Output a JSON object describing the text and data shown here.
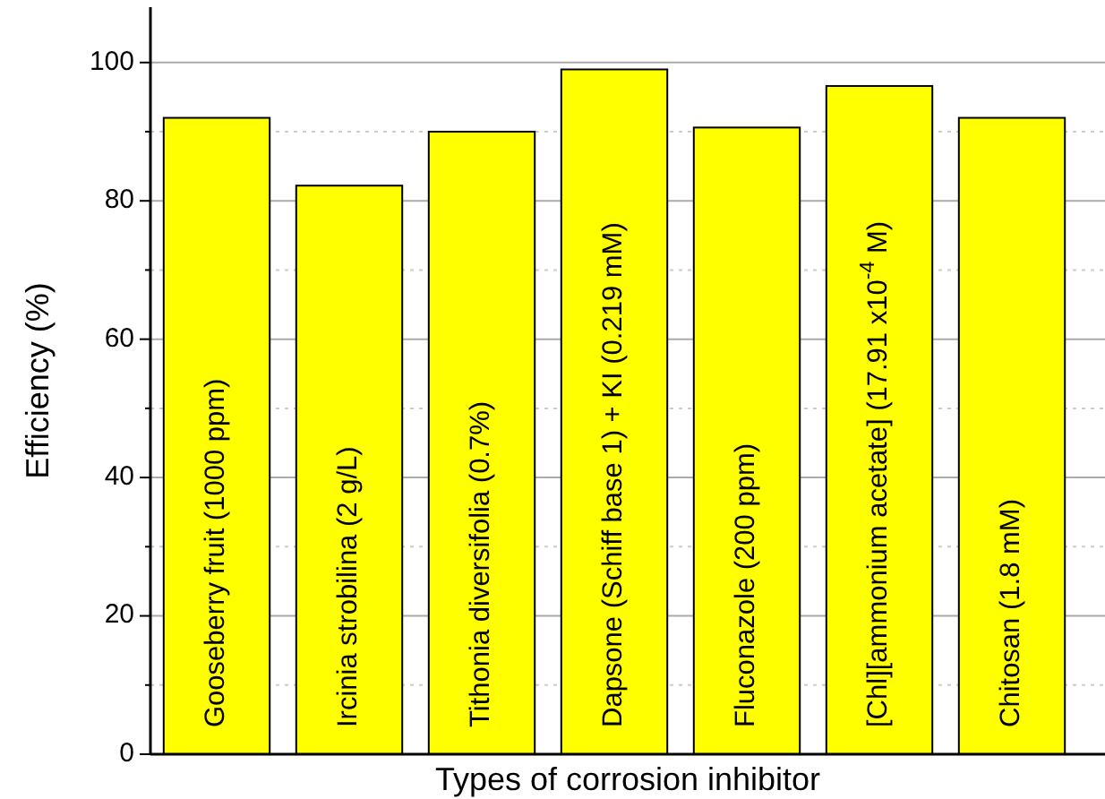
{
  "chart_data": {
    "type": "bar",
    "xlabel": "Types of corrosion inhibitor",
    "ylabel": "Efficiency (%)",
    "categories": [
      "Gooseberry fruit (1000 ppm)",
      "Ircinia strobilina (2 g/L)",
      "Tithonia diversifolia (0.7%)",
      "Dapsone (Schiff base 1) + KI (0.219 mM)",
      "Fluconazole (200 ppm)",
      "[Chl][ammonium acetate] (17.91 x10$^{-4}$ M)",
      "Chitosan (1.8 mM)"
    ],
    "values": [
      92,
      82.2,
      90,
      99,
      90.6,
      96.6,
      92
    ],
    "color": "#ffff00",
    "ylim": [
      0,
      108
    ],
    "yticks": [
      0,
      {
        "value": 10,
        "label": null
      },
      20,
      {
        "value": 30,
        "label": null
      },
      40,
      {
        "value": 50,
        "label": null
      },
      60,
      {
        "value": 70,
        "label": null
      },
      80,
      {
        "value": 90,
        "label": null
      },
      100
    ],
    "grid": "y"
  }
}
